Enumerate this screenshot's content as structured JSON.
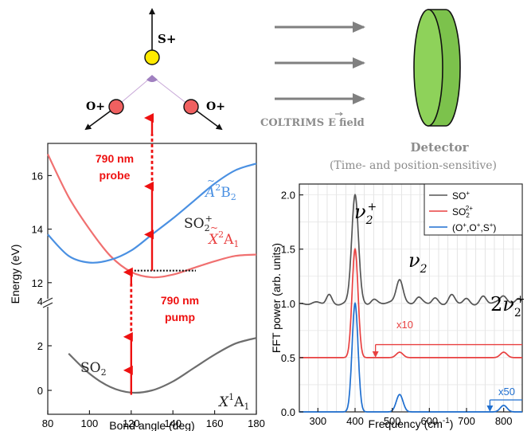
{
  "molecule": {
    "s_ion": "S+",
    "o_ion_left": "O+",
    "o_ion_right": "O+"
  },
  "setup": {
    "field_label_prefix": "COLTRIMS",
    "field_symbol": "E",
    "field_label_suffix": "field",
    "detector_title": "Detector",
    "detector_subtitle": "(Time- and position-sensitive)"
  },
  "colors": {
    "x_state": "#6d6d6d",
    "x2a1_state": "#f07070",
    "a2b2_state": "#4a90e2",
    "laser": "#ee1111",
    "detector_fill": "#7cc24c",
    "arrow_gray": "#808080",
    "so_plus": "#555555",
    "so2_2plus": "#e84040",
    "triple": "#1f6fd0"
  },
  "chart_data": [
    {
      "type": "line",
      "title": "",
      "xlabel": "Bond angle (deg)",
      "ylabel": "Energy (eV)",
      "xlim": [
        80,
        180
      ],
      "x_ticks": [
        "80",
        "100",
        "120",
        "140",
        "160",
        "180"
      ],
      "y_axis_break": true,
      "y_ticks_lower": [
        "0",
        "2",
        "4"
      ],
      "y_ticks_upper": [
        "12",
        "14",
        "16"
      ],
      "series": [
        {
          "name": "X1A1",
          "x": [
            90,
            100,
            110,
            120,
            130,
            140,
            150,
            160,
            170,
            180
          ],
          "y": [
            1.65,
            0.75,
            0.15,
            -0.1,
            0.0,
            0.4,
            1.0,
            1.6,
            2.1,
            2.35
          ]
        },
        {
          "name": "X2A1",
          "x": [
            80,
            90,
            100,
            110,
            120,
            130,
            140,
            150,
            160,
            170,
            180
          ],
          "y": [
            16.8,
            15.2,
            14.0,
            13.0,
            12.4,
            12.2,
            12.3,
            12.55,
            12.8,
            13.0,
            13.05
          ]
        },
        {
          "name": "A2B2",
          "x": [
            80,
            90,
            100,
            110,
            120,
            130,
            140,
            150,
            160,
            170,
            180
          ],
          "y": [
            13.8,
            13.0,
            12.75,
            12.85,
            13.2,
            13.8,
            14.4,
            15.05,
            15.7,
            16.2,
            16.45
          ]
        }
      ],
      "labels": {
        "so2": "SO2",
        "so2_plus": "SO2+",
        "x_state_main": "X",
        "x_state_sup": "1",
        "x_state_sub": "A1",
        "x2a1_main": "X",
        "x2a1_sup": "2",
        "x2a1_sub": "A1",
        "a2b2_main": "A",
        "a2b2_sup": "2",
        "a2b2_sub": "B2",
        "probe": [
          "790 nm",
          "probe"
        ],
        "pump": [
          "790 nm",
          "pump"
        ]
      },
      "ionization_level_ev": 12.45
    },
    {
      "type": "line",
      "title": "",
      "xlabel": "Frequency (cm-1)",
      "xlabel_main": "Frequency (cm",
      "xlabel_sup": "-1",
      "xlabel_end": ")",
      "ylabel": "FFT power (arb. units)",
      "xlim": [
        250,
        850
      ],
      "ylim": [
        0,
        2.1
      ],
      "x_ticks": [
        "300",
        "400",
        "500",
        "600",
        "700",
        "800"
      ],
      "y_ticks": [
        "0.0",
        "0.5",
        "1.0",
        "1.5",
        "2.0"
      ],
      "legend_position": "top-right",
      "series": [
        {
          "name": "SO+",
          "offset": 1.0,
          "peaks": [
            [
              330,
              0.08,
              7
            ],
            [
              400,
              1.0,
              9
            ],
            [
              450,
              0.04,
              8
            ],
            [
              520,
              0.23,
              9
            ],
            [
              570,
              0.05,
              8
            ],
            [
              615,
              0.05,
              8
            ],
            [
              660,
              0.07,
              8
            ],
            [
              700,
              0.04,
              8
            ],
            [
              745,
              0.06,
              8
            ],
            [
              800,
              0.08,
              9
            ],
            [
              840,
              0.05,
              7
            ]
          ]
        },
        {
          "name": "SO2 2+",
          "offset": 0.5,
          "peaks": [
            [
              400,
              1.0,
              8
            ],
            [
              520,
              0.05,
              9
            ],
            [
              800,
              0.05,
              9
            ]
          ]
        },
        {
          "name": "(O+,O+,S+)",
          "offset": 0.0,
          "peaks": [
            [
              400,
              1.0,
              8
            ],
            [
              520,
              0.16,
              9
            ],
            [
              800,
              0.06,
              9
            ]
          ]
        }
      ],
      "legend": {
        "so_plus_main": "SO",
        "so_plus_sup": "+",
        "so2_main": "SO",
        "so2_sub": "2",
        "so2_sup": "2+",
        "triple_a": "(O",
        "triple_b": ",O",
        "triple_c": ",S",
        "triple_d": ")"
      },
      "annotations": {
        "nu2_plus": "ν2+",
        "nu2": "ν2",
        "two_nu2_plus": "2ν2+",
        "x10": "x10",
        "x50": "x50"
      }
    }
  ]
}
